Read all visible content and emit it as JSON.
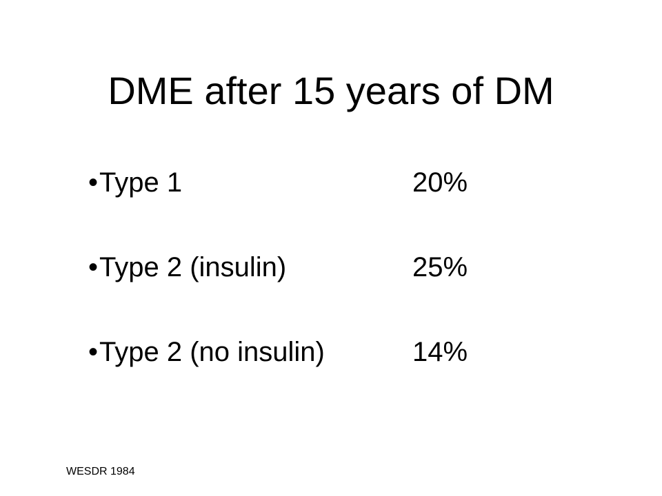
{
  "slide": {
    "title": "DME after 15 years of DM",
    "bullet_glyph": "•",
    "items": [
      {
        "label": "Type 1",
        "value": "20%"
      },
      {
        "label": "Type 2 (insulin)",
        "value": "25%"
      },
      {
        "label": "Type 2 (no insulin)",
        "value": "14%"
      }
    ],
    "source": "WESDR 1984"
  }
}
